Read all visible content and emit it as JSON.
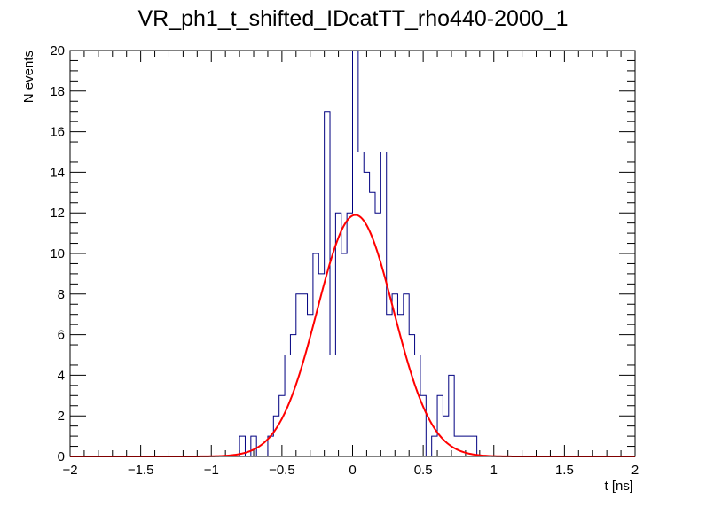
{
  "chart_data": {
    "type": "bar",
    "title": "VR_ph1_t_shifted_IDcatTT_rho440-2000_1",
    "xlabel": "t [ns]",
    "ylabel": "N events",
    "xlim": [
      -2,
      2
    ],
    "ylim": [
      0,
      20
    ],
    "x_tick_labels": [
      "−2",
      "−1.5",
      "−1",
      "−0.5",
      "0",
      "0.5",
      "1",
      "1.5",
      "2"
    ],
    "y_tick_labels": [
      "0",
      "2",
      "4",
      "6",
      "8",
      "10",
      "12",
      "14",
      "16",
      "18",
      "20"
    ],
    "series": [
      {
        "name": "histogram",
        "style": "step",
        "color": "#000080",
        "bin_low": -2.0,
        "bin_width": 0.04,
        "values": [
          0,
          0,
          0,
          0,
          0,
          0,
          0,
          0,
          0,
          0,
          0,
          0,
          0,
          0,
          0,
          0,
          0,
          0,
          0,
          0,
          0,
          0,
          0,
          0,
          0,
          0,
          0,
          0,
          0,
          0,
          1,
          0,
          1,
          0,
          0,
          1,
          2,
          3,
          5,
          6,
          8,
          8,
          7,
          10,
          9,
          17,
          5,
          12,
          10,
          12,
          20,
          15,
          14,
          13,
          12,
          15,
          7,
          8,
          7,
          8,
          6,
          5,
          3,
          0,
          1,
          3,
          2,
          4,
          1,
          1,
          1,
          1,
          0,
          0,
          0,
          0,
          0,
          0,
          0,
          0,
          0,
          0,
          0,
          0,
          0,
          0,
          0,
          0,
          0,
          0,
          0,
          0,
          0,
          0,
          0,
          0,
          0,
          0,
          0,
          0
        ]
      },
      {
        "name": "gaussian fit",
        "style": "line",
        "color": "#ff0000",
        "constant": 11.9,
        "mean": 0.02,
        "sigma": 0.27
      }
    ]
  }
}
